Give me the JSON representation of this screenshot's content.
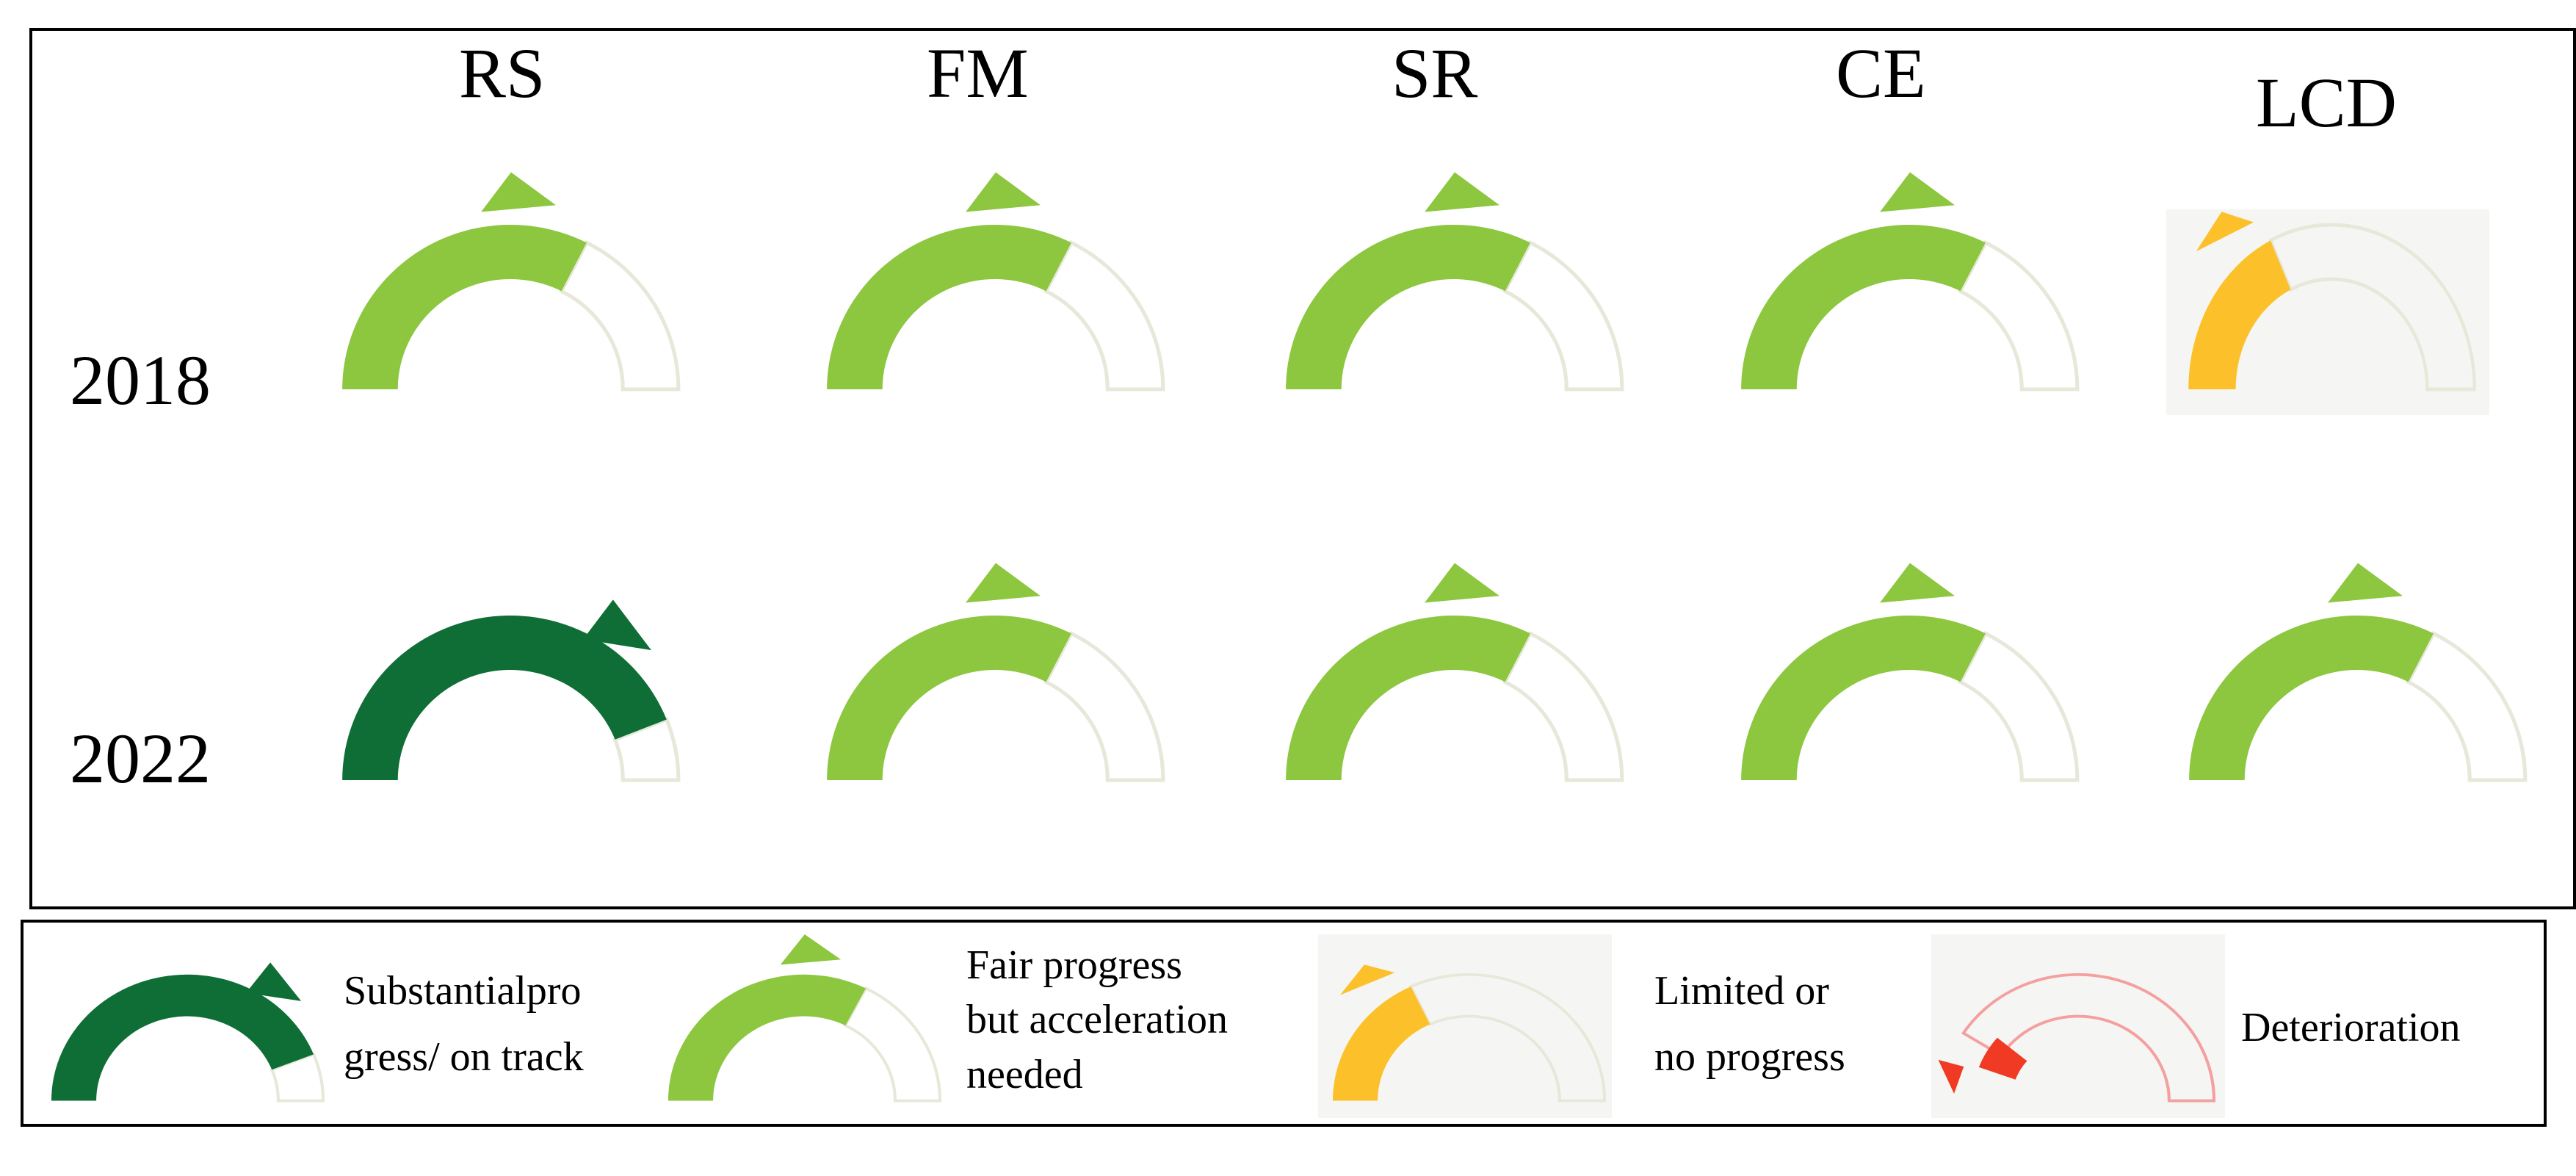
{
  "columns": [
    "RS",
    "FM",
    "SR",
    "CE",
    "LCD"
  ],
  "rows": [
    {
      "year": "2018",
      "statuses": [
        "fair",
        "fair",
        "fair",
        "fair",
        "limited"
      ]
    },
    {
      "year": "2022",
      "statuses": [
        "substantial",
        "fair",
        "fair",
        "fair",
        "fair"
      ]
    }
  ],
  "legend": [
    {
      "status": "substantial",
      "lines": [
        "Substantialpro",
        "gress/  on track"
      ]
    },
    {
      "status": "fair",
      "lines": [
        "Fair progress",
        "but acceleration",
        "needed"
      ]
    },
    {
      "status": "limited",
      "lines": [
        "Limited or",
        "no progress"
      ]
    },
    {
      "status": "deterioration",
      "lines": [
        "Deterioration"
      ]
    }
  ],
  "status_levels": {
    "substantial": 0.88,
    "fair": 0.65,
    "limited": 0.36,
    "deterioration": 0.18
  },
  "colors": {
    "substantial": "#0e6e35",
    "fair": "#8dc63f",
    "limited": "#fcc12a",
    "deterioration": "#f03a24",
    "outline": "#e7e8da",
    "outline_deterioration": "#f4a0a0",
    "tint_background": "#f5f6f3"
  },
  "icons": {
    "substantial": "gauge-substantial-icon",
    "fair": "gauge-fair-icon",
    "limited": "gauge-limited-icon",
    "deterioration": "gauge-deterioration-icon"
  }
}
